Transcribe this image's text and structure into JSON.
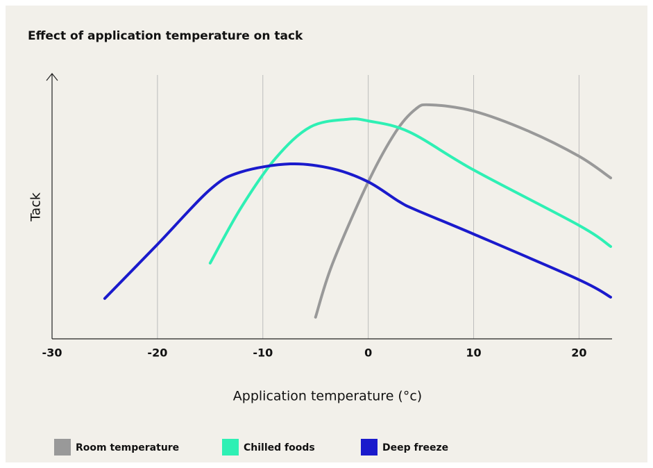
{
  "chart_data": {
    "type": "line",
    "title": "Effect of application temperature on tack",
    "xlabel": "Application temperature (°c)",
    "ylabel": "Tack",
    "xlim": [
      -30,
      23
    ],
    "xticks": [
      -30,
      -20,
      -10,
      0,
      10,
      20
    ],
    "ylim": [
      0,
      100
    ],
    "grid": true,
    "legend": "bottom",
    "series": [
      {
        "name": "Room temperature",
        "color": "#999999",
        "x": [
          -5,
          -3.4,
          0,
          2.6,
          4.5,
          5.9,
          10,
          15.1,
          20,
          23
        ],
        "values": [
          8.2,
          28.4,
          59.5,
          78.4,
          87.1,
          88.7,
          86.3,
          78.9,
          69.2,
          61
        ]
      },
      {
        "name": "Chilled foods",
        "color": "#2ef0b4",
        "x": [
          -15,
          -12.1,
          -8.8,
          -5.5,
          -2,
          0,
          3.9,
          10,
          20,
          23
        ],
        "values": [
          28.7,
          49.5,
          68.4,
          80.3,
          83.2,
          82.6,
          78.4,
          64,
          43,
          35
        ]
      },
      {
        "name": "Deep freeze",
        "color": "#1a1acc",
        "x": [
          -25,
          -20,
          -15,
          -12.1,
          -7.4,
          -3.4,
          0,
          2.9,
          4.5,
          10,
          20,
          23
        ],
        "values": [
          15.3,
          35.8,
          56.6,
          63.2,
          66.3,
          64.5,
          59.5,
          52.1,
          48.9,
          39.7,
          22.4,
          15.8
        ]
      }
    ]
  }
}
